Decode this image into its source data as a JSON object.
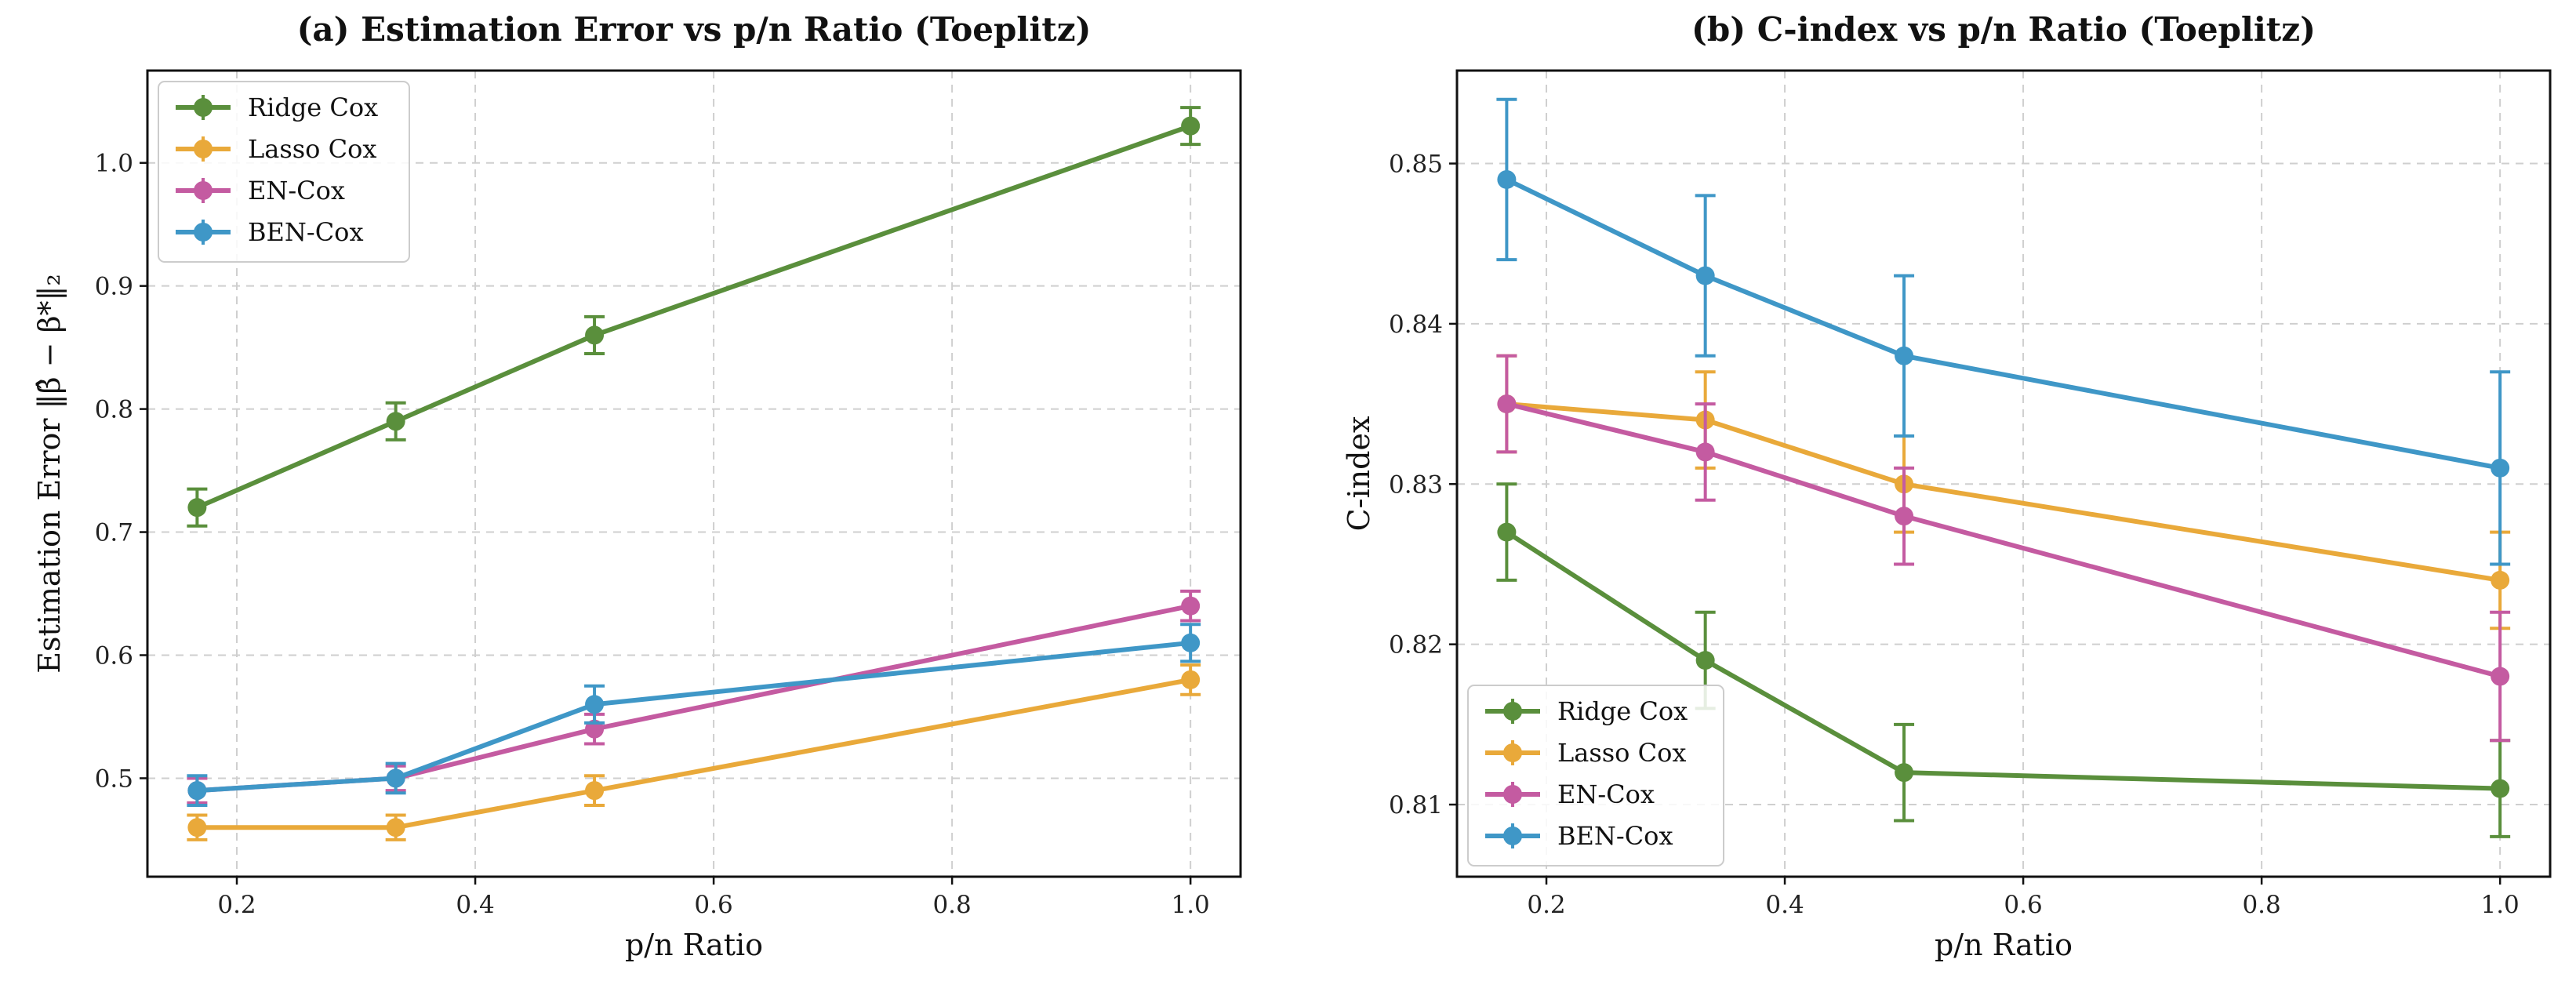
{
  "chart_data": [
    {
      "type": "line",
      "title": "(a) Estimation Error vs p/n Ratio (Toeplitz)",
      "xlabel": "p/n Ratio",
      "ylabel": "Estimation Error ‖β̂ − β*‖₂",
      "x": [
        0.1667,
        0.3333,
        0.5,
        1.0
      ],
      "xlim": [
        0.125,
        1.042
      ],
      "ylim": [
        0.42,
        1.075
      ],
      "xticks": [
        0.2,
        0.4,
        0.6,
        0.8,
        1.0
      ],
      "xtick_labels": [
        "0.2",
        "0.4",
        "0.6",
        "0.8",
        "1.0"
      ],
      "yticks": [
        0.5,
        0.6,
        0.7,
        0.8,
        0.9,
        1.0
      ],
      "ytick_labels": [
        "0.5",
        "0.6",
        "0.7",
        "0.8",
        "0.9",
        "1.0"
      ],
      "grid": true,
      "legend_position": "upper-left",
      "series": [
        {
          "name": "Ridge Cox",
          "color": "#5a8f3c",
          "values": [
            0.72,
            0.79,
            0.86,
            1.03
          ],
          "errors": [
            0.015,
            0.015,
            0.015,
            0.015
          ]
        },
        {
          "name": "Lasso Cox",
          "color": "#e9a93a",
          "values": [
            0.46,
            0.46,
            0.49,
            0.58
          ],
          "errors": [
            0.01,
            0.01,
            0.012,
            0.012
          ]
        },
        {
          "name": "EN-Cox",
          "color": "#c45ba1",
          "values": [
            0.49,
            0.5,
            0.54,
            0.64
          ],
          "errors": [
            0.01,
            0.01,
            0.012,
            0.012
          ]
        },
        {
          "name": "BEN-Cox",
          "color": "#3f97c7",
          "values": [
            0.49,
            0.5,
            0.56,
            0.61
          ],
          "errors": [
            0.012,
            0.012,
            0.015,
            0.015
          ]
        }
      ]
    },
    {
      "type": "line",
      "title": "(b) C-index vs p/n Ratio (Toeplitz)",
      "xlabel": "p/n Ratio",
      "ylabel": "C-index",
      "x": [
        0.1667,
        0.3333,
        0.5,
        1.0
      ],
      "xlim": [
        0.125,
        1.042
      ],
      "ylim": [
        0.8055,
        0.8558
      ],
      "xticks": [
        0.2,
        0.4,
        0.6,
        0.8,
        1.0
      ],
      "xtick_labels": [
        "0.2",
        "0.4",
        "0.6",
        "0.8",
        "1.0"
      ],
      "yticks": [
        0.81,
        0.82,
        0.83,
        0.84,
        0.85
      ],
      "ytick_labels": [
        "0.81",
        "0.82",
        "0.83",
        "0.84",
        "0.85"
      ],
      "grid": true,
      "legend_position": "lower-left",
      "series": [
        {
          "name": "Ridge Cox",
          "color": "#5a8f3c",
          "values": [
            0.827,
            0.819,
            0.812,
            0.811
          ],
          "errors": [
            0.003,
            0.003,
            0.003,
            0.003
          ]
        },
        {
          "name": "Lasso Cox",
          "color": "#e9a93a",
          "values": [
            0.835,
            0.834,
            0.83,
            0.824
          ],
          "errors": [
            0.003,
            0.003,
            0.003,
            0.003
          ]
        },
        {
          "name": "EN-Cox",
          "color": "#c45ba1",
          "values": [
            0.835,
            0.832,
            0.828,
            0.818
          ],
          "errors": [
            0.003,
            0.003,
            0.003,
            0.004
          ]
        },
        {
          "name": "BEN-Cox",
          "color": "#3f97c7",
          "values": [
            0.849,
            0.843,
            0.838,
            0.831
          ],
          "errors": [
            0.005,
            0.005,
            0.005,
            0.006
          ]
        }
      ]
    }
  ]
}
